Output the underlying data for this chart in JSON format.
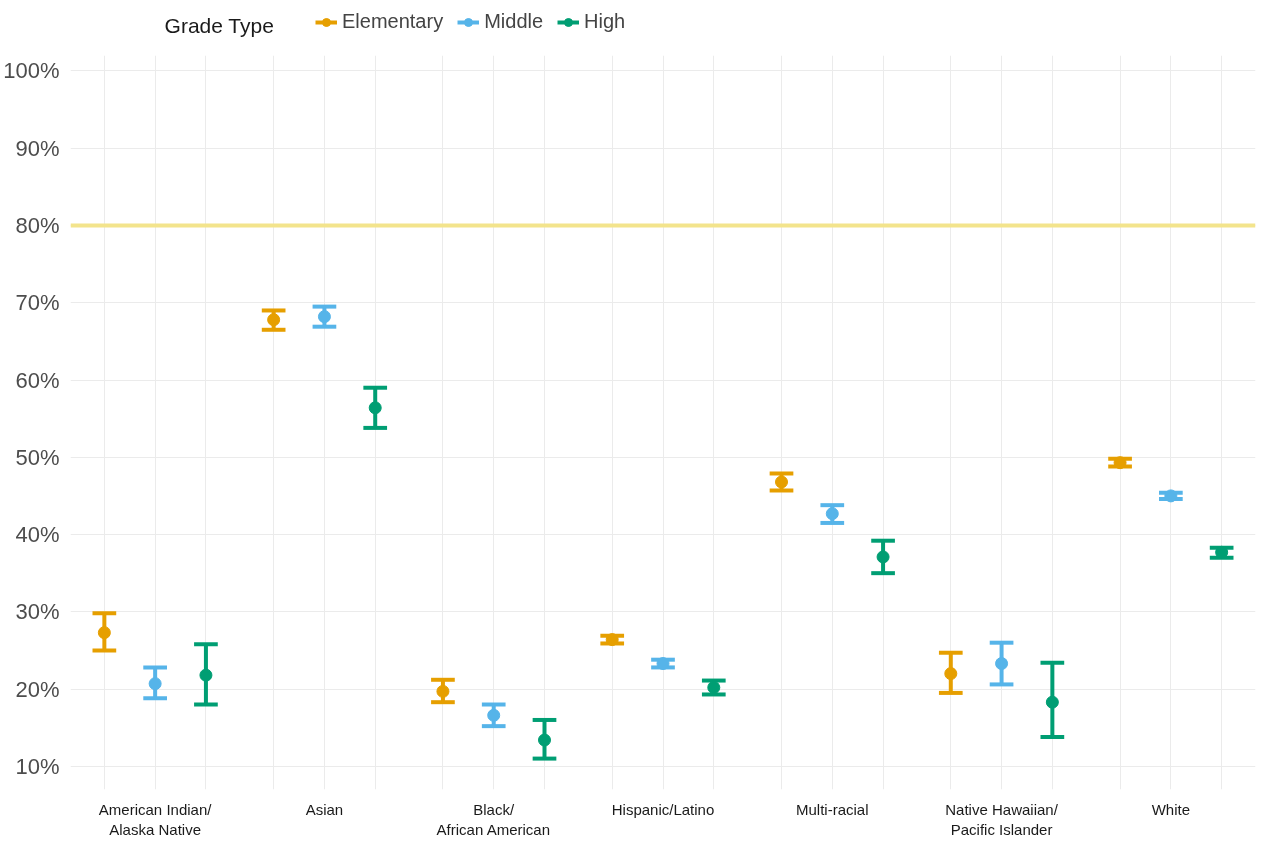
{
  "chart_data": {
    "type": "scatter",
    "legend_title": "Grade Type",
    "legend": "top left",
    "marker": "circle",
    "grid": true,
    "categories": [
      "American Indian/\nAlaska Native",
      "Asian",
      "Black/\nAfrican American",
      "Hispanic/Latino",
      "Multi-racial",
      "Native Hawaiian/\nPacific Islander",
      "White"
    ],
    "series": [
      {
        "name": "Elementary",
        "color": "#e69f00",
        "values": [
          27.3,
          67.8,
          19.7,
          26.4,
          46.8,
          22.0,
          49.3
        ],
        "errors": [
          [
            25.0,
            29.8
          ],
          [
            66.5,
            69.0
          ],
          [
            18.3,
            21.2
          ],
          [
            25.9,
            26.9
          ],
          [
            45.7,
            47.9
          ],
          [
            19.5,
            24.7
          ],
          [
            48.8,
            49.8
          ]
        ]
      },
      {
        "name": "Middle",
        "color": "#56b4e9",
        "values": [
          20.7,
          68.2,
          16.6,
          23.3,
          42.7,
          23.3,
          45.0
        ],
        "errors": [
          [
            18.8,
            22.8
          ],
          [
            66.9,
            69.5
          ],
          [
            15.2,
            18.0
          ],
          [
            22.8,
            23.8
          ],
          [
            41.5,
            43.8
          ],
          [
            20.6,
            26.0
          ],
          [
            44.6,
            45.4
          ]
        ]
      },
      {
        "name": "High",
        "color": "#009e73",
        "values": [
          21.8,
          56.4,
          13.4,
          20.2,
          37.1,
          18.3,
          37.7
        ],
        "errors": [
          [
            18.0,
            25.8
          ],
          [
            53.8,
            59.0
          ],
          [
            11.0,
            16.0
          ],
          [
            19.3,
            21.1
          ],
          [
            35.0,
            39.2
          ],
          [
            13.8,
            23.4
          ],
          [
            37.0,
            38.3
          ]
        ]
      }
    ],
    "ylim": [
      7,
      102
    ],
    "yticks": [
      {
        "value": 10,
        "label": "10%"
      },
      {
        "value": 20,
        "label": "20%"
      },
      {
        "value": 30,
        "label": "30%"
      },
      {
        "value": 40,
        "label": "40%"
      },
      {
        "value": 50,
        "label": "50%"
      },
      {
        "value": 60,
        "label": "60%"
      },
      {
        "value": 70,
        "label": "70%"
      },
      {
        "value": 80,
        "label": "80%"
      },
      {
        "value": 90,
        "label": "90%"
      },
      {
        "value": 100,
        "label": "100%"
      }
    ],
    "ref_lines": [
      {
        "axis": "y",
        "value": 80,
        "color": "#f3e48c"
      }
    ]
  }
}
